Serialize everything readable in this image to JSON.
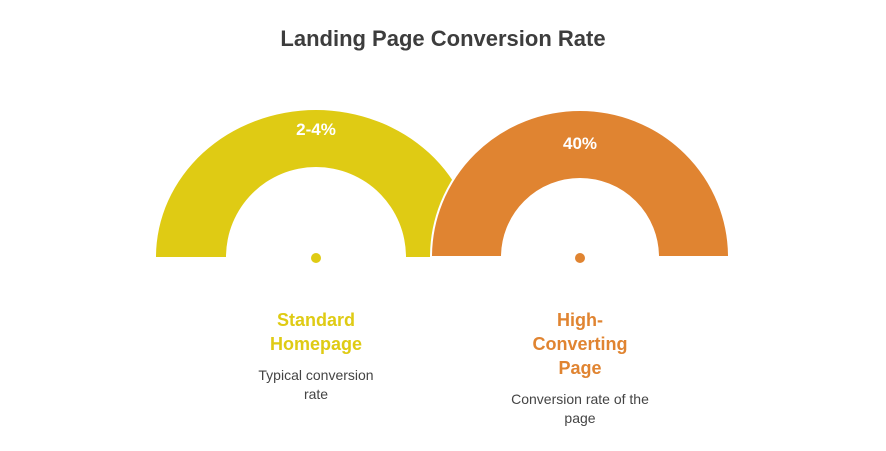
{
  "title": "Landing Page Conversion Rate",
  "items": [
    {
      "value_label": "2-4%",
      "name": "Standard Homepage",
      "description": "Typical conversion rate"
    },
    {
      "value_label": "40%",
      "name": "High-Converting Page",
      "description": "Conversion rate of the page"
    }
  ]
}
